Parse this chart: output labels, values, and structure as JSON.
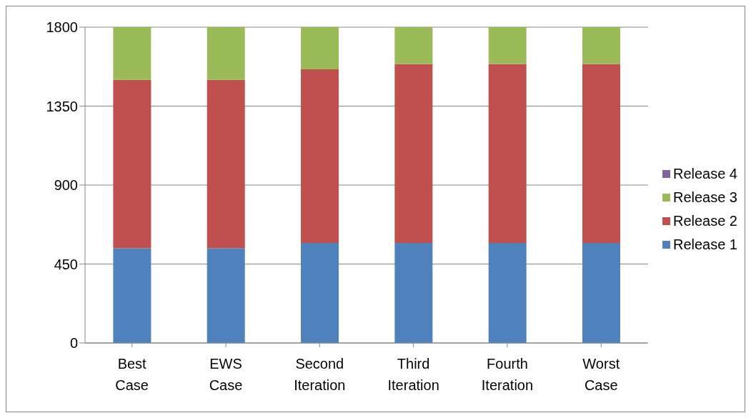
{
  "chart_data": {
    "type": "bar",
    "stacked": true,
    "categories": [
      "Best Case",
      "EWS Case",
      "Second Iteration",
      "Third Iteration",
      "Fourth Iteration",
      "Worst Case"
    ],
    "series": [
      {
        "name": "Release 1",
        "color": "#4f81bd",
        "values": [
          540,
          540,
          570,
          570,
          570,
          570
        ]
      },
      {
        "name": "Release 2",
        "color": "#c0504d",
        "values": [
          960,
          960,
          990,
          1020,
          1020,
          1020
        ]
      },
      {
        "name": "Release 3",
        "color": "#9bbb59",
        "values": [
          300,
          300,
          240,
          210,
          210,
          210
        ]
      },
      {
        "name": "Release 4",
        "color": "#8064a2",
        "values": [
          0,
          0,
          0,
          0,
          0,
          0
        ]
      }
    ],
    "ylim": [
      0,
      1800
    ],
    "yticks": [
      0,
      450,
      900,
      1350,
      1800
    ],
    "grid": "y",
    "legend": "right"
  }
}
